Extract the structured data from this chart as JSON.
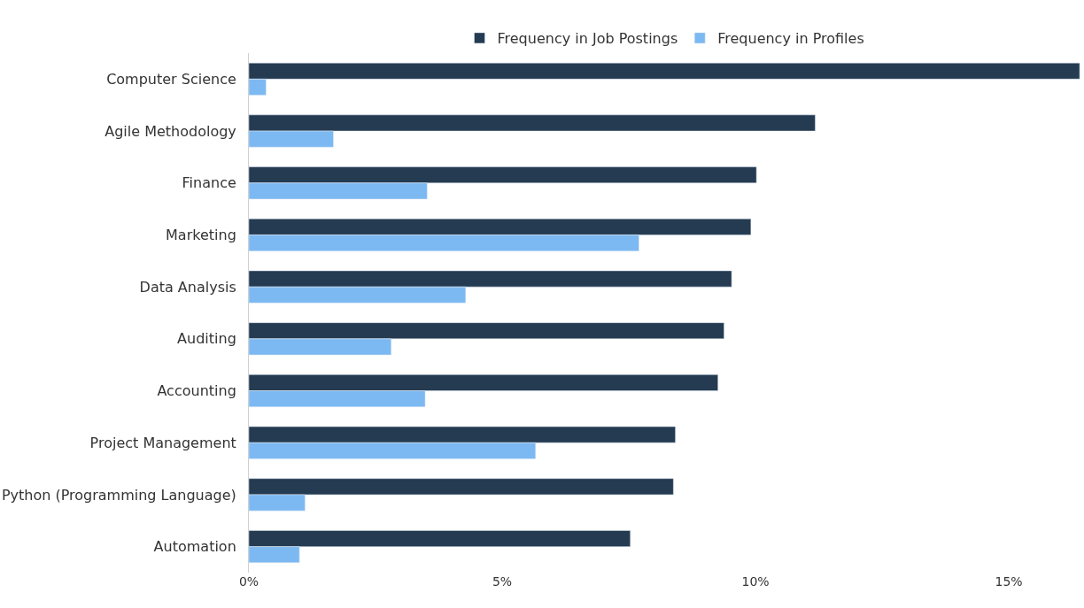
{
  "chart_data": {
    "type": "bar",
    "orientation": "horizontal",
    "categories": [
      "Computer Science",
      "Agile Methodology",
      "Finance",
      "Marketing",
      "Data Analysis",
      "Auditing",
      "Accounting",
      "Project Management",
      "Python (Programming Language)",
      "Automation"
    ],
    "series": [
      {
        "name": "Frequency in Job Postings",
        "color": "#243b52",
        "values": [
          16.4,
          11.18,
          10.02,
          9.91,
          9.53,
          9.38,
          9.26,
          8.42,
          8.38,
          7.53
        ]
      },
      {
        "name": "Frequency in Profiles",
        "color": "#7cb9f2",
        "values": [
          0.34,
          1.67,
          3.52,
          7.7,
          4.28,
          2.81,
          3.48,
          5.66,
          1.11,
          1.0
        ]
      }
    ],
    "xlim": [
      0,
      16.45
    ],
    "xticks": [
      {
        "value": 0,
        "label": "0%"
      },
      {
        "value": 5,
        "label": "5%"
      },
      {
        "value": 10,
        "label": "10%"
      },
      {
        "value": 15,
        "label": "15%"
      }
    ],
    "legend": "top"
  }
}
